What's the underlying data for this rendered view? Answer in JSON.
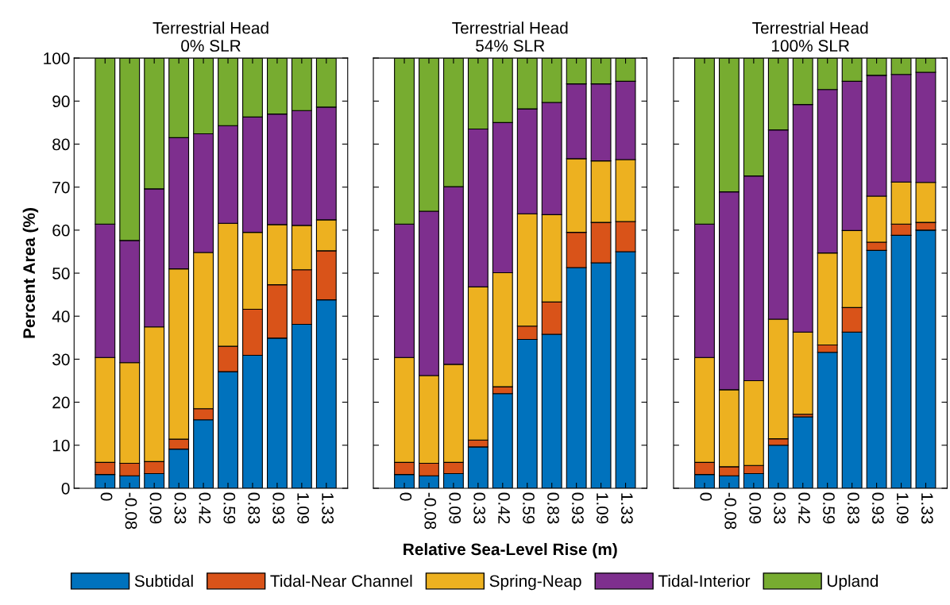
{
  "chart_data": [
    {
      "type": "bar",
      "stacked": true,
      "title": "Terrestrial Head\n0% SLR",
      "ylabel": "Percent Area (%)",
      "categories": [
        "0",
        "-0.08",
        "0.09",
        "0.33",
        "0.42",
        "0.59",
        "0.83",
        "0.93",
        "1.09",
        "1.33"
      ],
      "ylim": [
        0,
        100
      ],
      "yticks": [
        0,
        10,
        20,
        30,
        40,
        50,
        60,
        70,
        80,
        90,
        100
      ],
      "legend": "bottom",
      "grid": false,
      "series": [
        {
          "name": "Subtidal",
          "color": "#0072bd",
          "values": [
            3.2,
            2.9,
            3.4,
            9.1,
            15.9,
            27.1,
            30.9,
            34.9,
            38.1,
            43.8
          ]
        },
        {
          "name": "Tidal-Near Channel",
          "color": "#d95319",
          "values": [
            2.8,
            2.9,
            2.8,
            2.3,
            2.6,
            5.9,
            10.7,
            12.4,
            12.7,
            11.4
          ]
        },
        {
          "name": "Spring-Neap",
          "color": "#edb120",
          "values": [
            24.4,
            23.4,
            31.3,
            39.6,
            36.3,
            28.6,
            17.9,
            14.0,
            10.3,
            7.2
          ]
        },
        {
          "name": "Tidal-Interior",
          "color": "#7e2f8e",
          "values": [
            31.0,
            28.4,
            32.1,
            30.5,
            27.6,
            22.7,
            26.8,
            25.7,
            26.7,
            26.2
          ]
        },
        {
          "name": "Upland",
          "color": "#77ac30",
          "values": [
            38.6,
            42.4,
            30.4,
            18.5,
            17.6,
            15.7,
            13.7,
            13.0,
            12.2,
            11.4
          ]
        }
      ]
    },
    {
      "type": "bar",
      "stacked": true,
      "title": "Terrestrial Head\n54% SLR",
      "xlabel": "Relative Sea-Level Rise (m)",
      "categories": [
        "0",
        "-0.08",
        "0.09",
        "0.33",
        "0.42",
        "0.59",
        "0.83",
        "0.93",
        "1.09",
        "1.33"
      ],
      "ylim": [
        0,
        100
      ],
      "yticks": [
        0,
        10,
        20,
        30,
        40,
        50,
        60,
        70,
        80,
        90,
        100
      ],
      "tick_labels": "x",
      "grid": false,
      "series": [
        {
          "color": "#0072bd",
          "values": [
            3.2,
            2.9,
            3.4,
            9.6,
            22.0,
            34.6,
            35.8,
            51.3,
            52.4,
            55.0
          ]
        },
        {
          "color": "#d95319",
          "values": [
            2.8,
            2.9,
            2.6,
            1.6,
            1.6,
            3.1,
            7.5,
            8.2,
            9.4,
            7.0
          ]
        },
        {
          "color": "#edb120",
          "values": [
            24.4,
            20.4,
            22.8,
            35.6,
            26.5,
            26.1,
            20.3,
            17.1,
            14.3,
            14.4
          ]
        },
        {
          "color": "#7e2f8e",
          "values": [
            31.0,
            38.2,
            41.3,
            36.7,
            34.9,
            24.4,
            26.1,
            17.4,
            17.9,
            18.2
          ]
        },
        {
          "color": "#77ac30",
          "values": [
            38.6,
            35.6,
            29.9,
            16.5,
            15.0,
            11.8,
            10.3,
            6.0,
            6.0,
            5.4
          ]
        }
      ]
    },
    {
      "type": "bar",
      "stacked": true,
      "title": "Terrestrial Head\n100% SLR",
      "categories": [
        "0",
        "-0.08",
        "0.09",
        "0.33",
        "0.42",
        "0.59",
        "0.83",
        "0.93",
        "1.09",
        "1.33"
      ],
      "ylim": [
        0,
        100
      ],
      "yticks": [
        0,
        10,
        20,
        30,
        40,
        50,
        60,
        70,
        80,
        90,
        100
      ],
      "tick_labels": "x",
      "grid": false,
      "series": [
        {
          "color": "#0072bd",
          "values": [
            3.2,
            2.9,
            3.4,
            10.0,
            16.6,
            31.6,
            36.3,
            55.3,
            58.8,
            60.0
          ]
        },
        {
          "color": "#d95319",
          "values": [
            2.8,
            2.1,
            1.9,
            1.5,
            0.6,
            1.7,
            5.7,
            1.9,
            2.6,
            1.8
          ]
        },
        {
          "color": "#edb120",
          "values": [
            24.4,
            17.9,
            19.7,
            27.8,
            19.1,
            21.4,
            17.9,
            10.7,
            9.8,
            9.3
          ]
        },
        {
          "color": "#7e2f8e",
          "values": [
            31.0,
            46.0,
            47.6,
            44.0,
            52.9,
            38.0,
            34.7,
            28.1,
            25.0,
            25.6
          ]
        },
        {
          "color": "#77ac30",
          "values": [
            38.6,
            31.1,
            27.4,
            16.7,
            10.8,
            7.3,
            5.4,
            4.0,
            3.8,
            3.3
          ]
        }
      ]
    }
  ]
}
